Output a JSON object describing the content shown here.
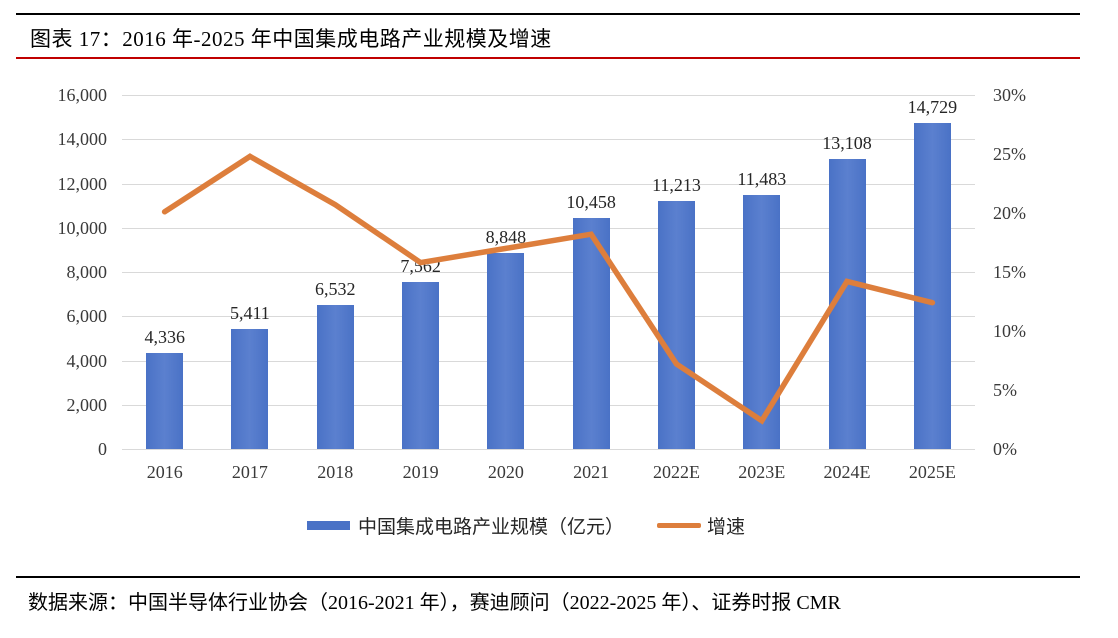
{
  "header": {
    "title": "图表 17：2016 年-2025 年中国集成电路产业规模及增速"
  },
  "footer": {
    "source": "数据来源：中国半导体行业协会（2016-2021 年），赛迪顾问（2022-2025 年）、证券时报 CMR"
  },
  "colors": {
    "bar": "#4a72c6",
    "line": "#dd7e3c",
    "accent_red": "#c00000",
    "grid": "#d9d9d9"
  },
  "chart_data": {
    "type": "bar+line combo",
    "title": "2016 年-2025 年中国集成电路产业规模及增速",
    "categories": [
      "2016",
      "2017",
      "2018",
      "2019",
      "2020",
      "2021",
      "2022E",
      "2023E",
      "2024E",
      "2025E"
    ],
    "series": [
      {
        "name": "中国集成电路产业规模（亿元）",
        "type": "bar",
        "axis": "left",
        "values": [
          4336,
          5411,
          6532,
          7562,
          8848,
          10458,
          11213,
          11483,
          13108,
          14729
        ],
        "labels": [
          "4,336",
          "5,411",
          "6,532",
          "7,562",
          "8,848",
          "10,458",
          "11,213",
          "11,483",
          "13,108",
          "14,729"
        ]
      },
      {
        "name": "增速",
        "type": "line",
        "axis": "right",
        "unit": "%",
        "values": [
          20.1,
          24.8,
          20.7,
          15.8,
          17.0,
          18.2,
          7.2,
          2.4,
          14.2,
          12.4
        ]
      }
    ],
    "left_axis": {
      "min": 0,
      "max": 16000,
      "step": 2000,
      "tick_labels": [
        "0",
        "2,000",
        "4,000",
        "6,000",
        "8,000",
        "10,000",
        "12,000",
        "14,000",
        "16,000"
      ]
    },
    "right_axis": {
      "min": 0,
      "max": 30,
      "step": 5,
      "tick_labels": [
        "0%",
        "5%",
        "10%",
        "15%",
        "20%",
        "25%",
        "30%"
      ]
    },
    "grid": true,
    "legend_position": "bottom"
  }
}
